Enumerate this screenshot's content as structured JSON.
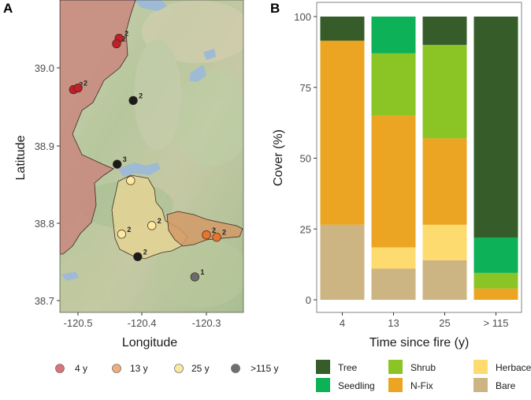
{
  "panel_a": {
    "label": "A",
    "xlabel": "Longitude",
    "ylabel": "Latitude",
    "x_ticks": [
      "-120.5",
      "-120.4",
      "-120.3"
    ],
    "y_ticks": [
      "39.0",
      "38.9",
      "38.8",
      "38.7"
    ],
    "legend": [
      {
        "label": "4 y",
        "color": "#d9747a"
      },
      {
        "label": "13 y",
        "color": "#f0ad7d"
      },
      {
        "label": "25 y",
        "color": "#fbe6a2"
      },
      {
        "label": ">115 y",
        "color": "#6f6f6f"
      }
    ],
    "sites": [
      {
        "lon": -120.436,
        "lat": 39.038,
        "label": "2",
        "group": "4 y"
      },
      {
        "lon": -120.44,
        "lat": 39.031,
        "label": "2",
        "group": "4 y"
      },
      {
        "lon": -120.507,
        "lat": 38.972,
        "label": "2",
        "group": "4 y"
      },
      {
        "lon": -120.5,
        "lat": 38.974,
        "label": "2",
        "group": "4 y"
      },
      {
        "lon": -120.414,
        "lat": 38.958,
        "label": "2",
        "group": ">115 y"
      },
      {
        "lon": -120.439,
        "lat": 38.876,
        "label": "3",
        "group": ">115 y"
      },
      {
        "lon": -120.418,
        "lat": 38.855,
        "label": "",
        "group": "25 y"
      },
      {
        "lon": -120.385,
        "lat": 38.797,
        "label": "2",
        "group": "25 y"
      },
      {
        "lon": -120.432,
        "lat": 38.786,
        "label": "2",
        "group": "25 y"
      },
      {
        "lon": -120.3,
        "lat": 38.785,
        "label": "2",
        "group": "13 y"
      },
      {
        "lon": -120.284,
        "lat": 38.782,
        "label": "2",
        "group": "13 y"
      },
      {
        "lon": -120.407,
        "lat": 38.757,
        "label": "2",
        "group": ">115 y"
      },
      {
        "lon": -120.318,
        "lat": 38.731,
        "label": "1",
        "group": ">115 y"
      }
    ]
  },
  "chart_data": {
    "type": "bar",
    "stacked": true,
    "panel_label": "B",
    "xlabel": "Time since fire (y)",
    "ylabel": "Cover (%)",
    "categories": [
      "4",
      "13",
      "25",
      "> 115"
    ],
    "ylim": [
      0,
      100
    ],
    "yticks": [
      "0",
      "25",
      "50",
      "75",
      "100"
    ],
    "series": [
      {
        "name": "Bare",
        "color": "#cdb483",
        "values": [
          26.5,
          11,
          14,
          0
        ]
      },
      {
        "name": "Herbaceous",
        "color": "#fddb6e",
        "values": [
          0,
          7.5,
          12.5,
          0
        ]
      },
      {
        "name": "N-Fix",
        "color": "#eba523",
        "values": [
          65,
          46.5,
          30.5,
          4
        ]
      },
      {
        "name": "Shrub",
        "color": "#8bc425",
        "values": [
          0,
          22,
          33,
          5.5
        ]
      },
      {
        "name": "Seedling",
        "color": "#0db157",
        "values": [
          0,
          13,
          0,
          12.5
        ]
      },
      {
        "name": "Tree",
        "color": "#365c2a",
        "values": [
          8.5,
          0,
          10,
          78
        ]
      }
    ],
    "legend_order": [
      "Tree",
      "Seedling",
      "Shrub",
      "N-Fix",
      "Herbaceous",
      "Bare"
    ]
  }
}
